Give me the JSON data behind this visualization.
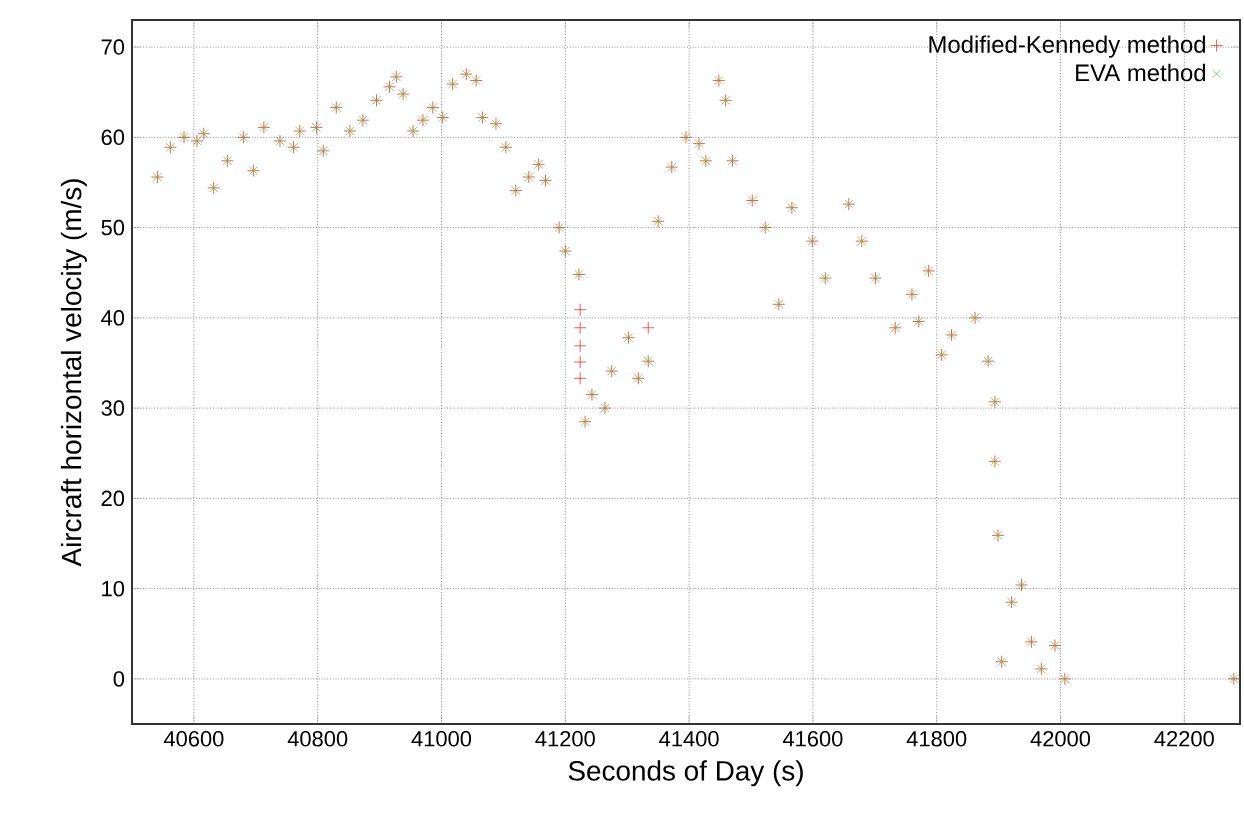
{
  "chart_data": {
    "type": "scatter",
    "xlabel": "Seconds of Day (s)",
    "ylabel": "Aircraft horizontal velocity (m/s)",
    "xlim": [
      40500,
      42290
    ],
    "ylim": [
      -5,
      73
    ],
    "xticks": [
      40600,
      40800,
      41000,
      41200,
      41400,
      41600,
      41800,
      42000,
      42200
    ],
    "yticks": [
      0,
      10,
      20,
      30,
      40,
      50,
      60,
      70
    ],
    "grid": true,
    "legend": "top right",
    "series": [
      {
        "name": "Modified-Kennedy method",
        "color": "#e8322c",
        "marker": "plus",
        "x": [
          40541,
          40562,
          40584,
          40605,
          40616,
          40632,
          40654,
          40680,
          40696,
          40713,
          40739,
          40761,
          40771,
          40798,
          40809,
          40830,
          40852,
          40873,
          40895,
          40916,
          40927,
          40938,
          40954,
          40970,
          40986,
          41002,
          41018,
          41040,
          41056,
          41066,
          41088,
          41104,
          41120,
          41141,
          41157,
          41168,
          41190,
          41200,
          41222,
          41224,
          41224,
          41224,
          41224,
          41224,
          41232,
          41243,
          41264,
          41275,
          41302,
          41318,
          41334,
          41334,
          41350,
          41372,
          41395,
          41416,
          41427,
          41448,
          41459,
          41470,
          41502,
          41523,
          41545,
          41566,
          41599,
          41620,
          41658,
          41679,
          41701,
          41733,
          41760,
          41771,
          41787,
          41808,
          41824,
          41862,
          41883,
          41894,
          41894,
          41899,
          41905,
          41921,
          41937,
          41953,
          41969,
          41991,
          42007,
          42280
        ],
        "values": [
          55.6,
          58.9,
          60,
          59.6,
          60.4,
          54.4,
          57.4,
          60,
          56.3,
          61.1,
          59.6,
          58.9,
          60.7,
          61.1,
          58.5,
          63.3,
          60.7,
          61.9,
          64.1,
          65.6,
          66.7,
          64.8,
          60.7,
          61.9,
          63.3,
          62.2,
          65.9,
          67,
          66.3,
          62.2,
          61.5,
          58.9,
          54.1,
          55.6,
          57,
          55.2,
          50,
          47.4,
          44.8,
          40.9,
          38.9,
          36.9,
          35.1,
          33.3,
          28.5,
          31.5,
          30,
          34.1,
          37.8,
          33.3,
          35.2,
          38.9,
          50.7,
          56.7,
          60,
          59.3,
          57.4,
          66.3,
          64.1,
          57.4,
          53,
          50,
          41.5,
          52.2,
          48.5,
          44.4,
          52.6,
          48.5,
          44.4,
          38.9,
          42.6,
          39.6,
          45.2,
          35.9,
          38.1,
          40,
          35.2,
          30.7,
          24.1,
          15.9,
          1.9,
          8.5,
          10.4,
          4.1,
          1.1,
          3.7,
          0,
          0
        ]
      },
      {
        "name": "EVA method",
        "color": "#5fc14b",
        "marker": "cross",
        "x": [
          40541,
          40562,
          40584,
          40605,
          40616,
          40632,
          40654,
          40680,
          40696,
          40713,
          40739,
          40761,
          40771,
          40798,
          40809,
          40830,
          40852,
          40873,
          40895,
          40916,
          40927,
          40938,
          40954,
          40970,
          40986,
          41002,
          41018,
          41040,
          41056,
          41066,
          41088,
          41104,
          41120,
          41141,
          41157,
          41168,
          41190,
          41200,
          41222,
          41232,
          41243,
          41264,
          41275,
          41302,
          41318,
          41334,
          41350,
          41372,
          41395,
          41416,
          41427,
          41448,
          41459,
          41470,
          41502,
          41523,
          41545,
          41566,
          41599,
          41620,
          41658,
          41679,
          41701,
          41733,
          41760,
          41771,
          41787,
          41808,
          41824,
          41862,
          41883,
          41894,
          41894,
          41899,
          41905,
          41921,
          41937,
          41953,
          41969,
          41991,
          42007,
          42280
        ],
        "values": [
          55.6,
          58.9,
          60,
          59.6,
          60.4,
          54.4,
          57.4,
          60,
          56.3,
          61.1,
          59.6,
          58.9,
          60.7,
          61.1,
          58.5,
          63.3,
          60.7,
          61.9,
          64.1,
          65.6,
          66.7,
          64.8,
          60.7,
          61.9,
          63.3,
          62.2,
          65.9,
          67,
          66.3,
          62.2,
          61.5,
          58.9,
          54.1,
          55.6,
          57,
          55.2,
          50,
          47.4,
          44.8,
          28.5,
          31.5,
          30,
          34.1,
          37.8,
          33.3,
          35.2,
          50.7,
          56.7,
          60,
          59.3,
          57.4,
          66.3,
          64.1,
          57.4,
          53,
          50,
          41.5,
          52.2,
          48.5,
          44.4,
          52.6,
          48.5,
          44.4,
          38.9,
          42.6,
          39.6,
          45.2,
          35.9,
          38.1,
          40,
          35.2,
          30.7,
          24.1,
          15.9,
          1.9,
          8.5,
          10.4,
          4.1,
          1.1,
          3.7,
          0,
          0
        ]
      }
    ]
  }
}
